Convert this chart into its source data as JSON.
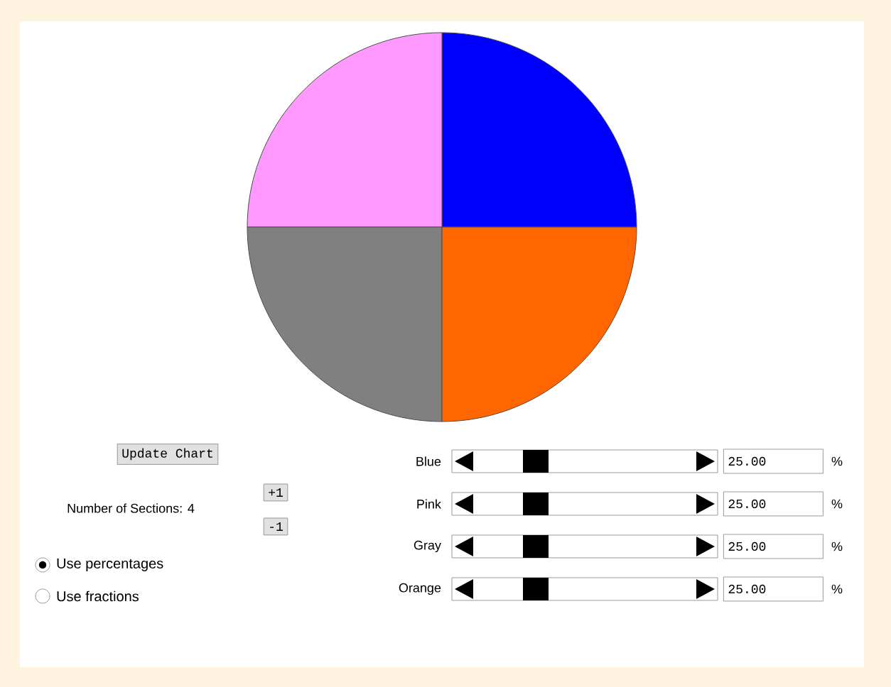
{
  "chart_data": [
    {
      "type": "pie",
      "categories": [
        null,
        null,
        null,
        null
      ],
      "values": [
        25,
        25,
        25,
        25
      ],
      "colors": [
        "#0000ff",
        "#ff99ff",
        "#808080",
        "#ff6600"
      ]
    },
    {
      "type": "other",
      "annotations": [
        "Update Chart",
        "Number of Sections: 4",
        "+1",
        "-1",
        "Use percentages",
        "Use fractions",
        "Blue",
        "25.00",
        "%",
        "Pink",
        "25.00",
        "%",
        "Gray",
        "25.00",
        "%",
        "Orange",
        "25.00",
        "%"
      ]
    }
  ]
}
